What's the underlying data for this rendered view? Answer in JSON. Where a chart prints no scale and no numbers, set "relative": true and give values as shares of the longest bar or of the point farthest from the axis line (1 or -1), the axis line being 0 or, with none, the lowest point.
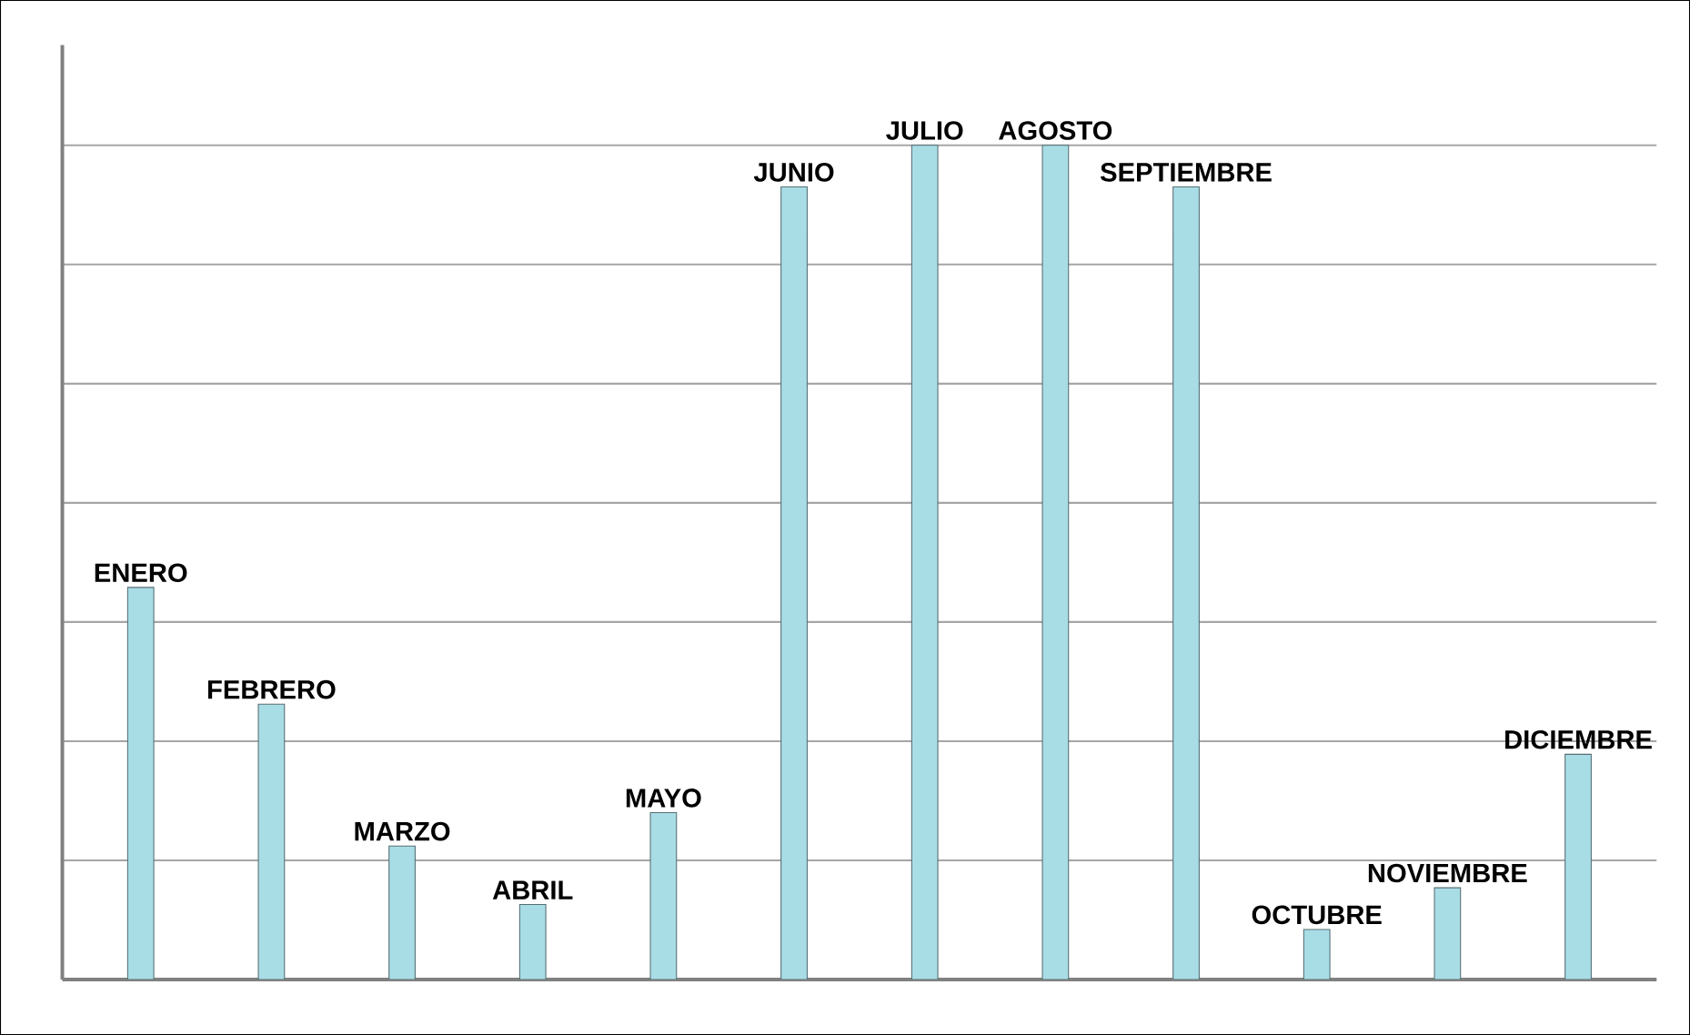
{
  "chart_data": {
    "type": "bar",
    "relative": true,
    "grid": "y",
    "color": "#a9dde6",
    "categories": [
      "ENERO",
      "FEBRERO",
      "MARZO",
      "ABRIL",
      "MAYO",
      "JUNIO",
      "JULIO",
      "AGOSTO",
      "SEPTIEMBRE",
      "OCTUBRE",
      "NOVIEMBRE",
      "DICIEMBRE"
    ],
    "values": [
      0.47,
      0.33,
      0.16,
      0.09,
      0.2,
      0.95,
      1,
      1,
      0.95,
      0.06,
      0.11,
      0.27
    ]
  }
}
